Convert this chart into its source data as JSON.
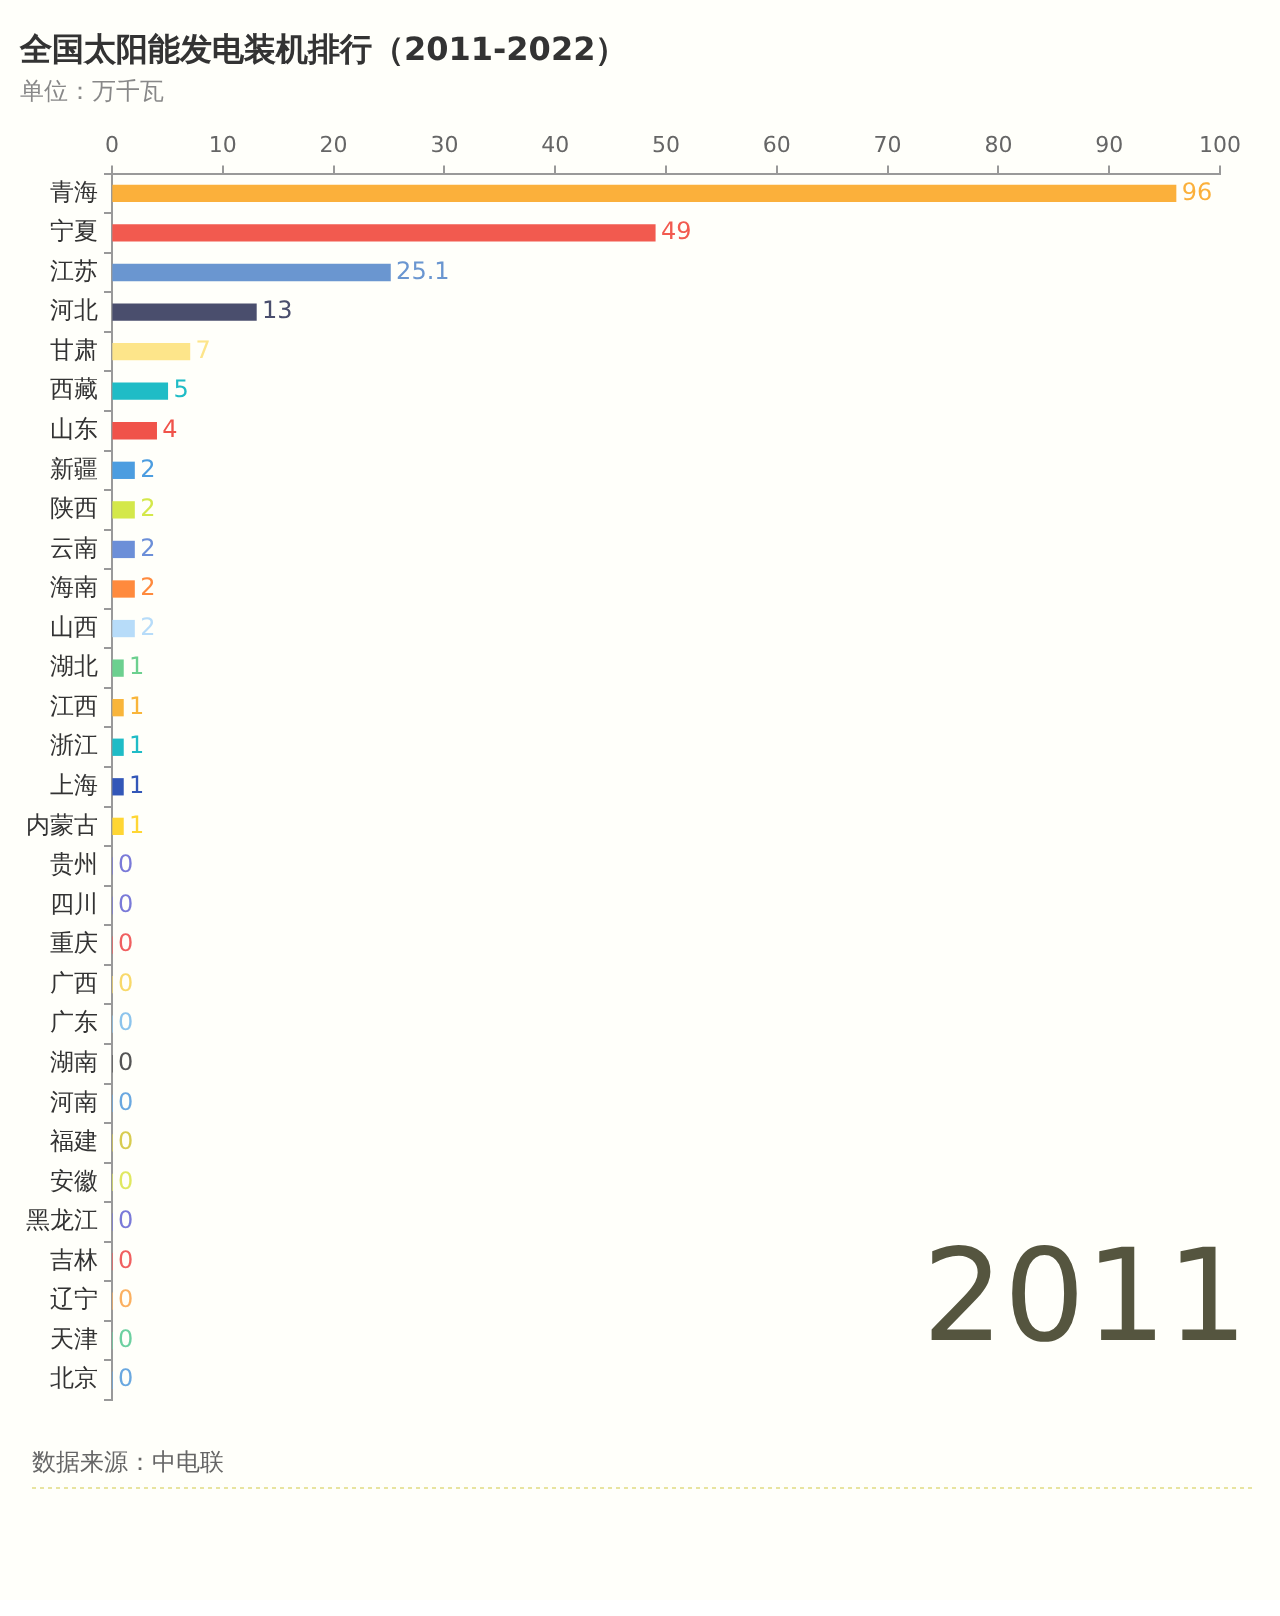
{
  "chart_data": {
    "type": "bar",
    "orientation": "horizontal",
    "title": "全国太阳能发电装机排行（2011-2022）",
    "subtitle": "单位：万千瓦",
    "categories": [
      "青海",
      "宁夏",
      "江苏",
      "河北",
      "甘肃",
      "西藏",
      "山东",
      "新疆",
      "陕西",
      "云南",
      "海南",
      "山西",
      "湖北",
      "江西",
      "浙江",
      "上海",
      "内蒙古",
      "贵州",
      "四川",
      "重庆",
      "广西",
      "广东",
      "湖南",
      "河南",
      "福建",
      "安徽",
      "黑龙江",
      "吉林",
      "辽宁",
      "天津",
      "北京"
    ],
    "values": [
      96,
      49,
      25.1,
      13,
      7,
      5,
      4,
      2,
      2,
      2,
      2,
      2,
      1,
      1,
      1,
      1,
      1,
      0,
      0,
      0,
      0,
      0,
      0,
      0,
      0,
      0,
      0,
      0,
      0,
      0,
      0
    ],
    "colors": [
      "#fbb03b",
      "#f25a4f",
      "#6a96d0",
      "#4a4e6d",
      "#fde58a",
      "#1fbcc6",
      "#f0534a",
      "#4c9de0",
      "#d4e84a",
      "#6c8fd8",
      "#ff8a3d",
      "#b7dcf9",
      "#6cd08f",
      "#f9b53a",
      "#1fbcc6",
      "#3357b8",
      "#ffd633",
      "#7a7ad8",
      "#7a7ad8",
      "#f06060",
      "#f8d96a",
      "#8cc4ec",
      "#555555",
      "#6aa8e0",
      "#d8cc50",
      "#e0e860",
      "#7a7ad8",
      "#f06060",
      "#fbb060",
      "#6cd0a0",
      "#6aa8e0"
    ],
    "xlim": [
      0,
      100
    ],
    "xticks": [
      0,
      10,
      20,
      30,
      40,
      50,
      60,
      70,
      80,
      90,
      100
    ],
    "grid": false,
    "legend": false,
    "data_labels": true,
    "annotations": [
      "2011",
      "数据来源：中电联"
    ]
  }
}
